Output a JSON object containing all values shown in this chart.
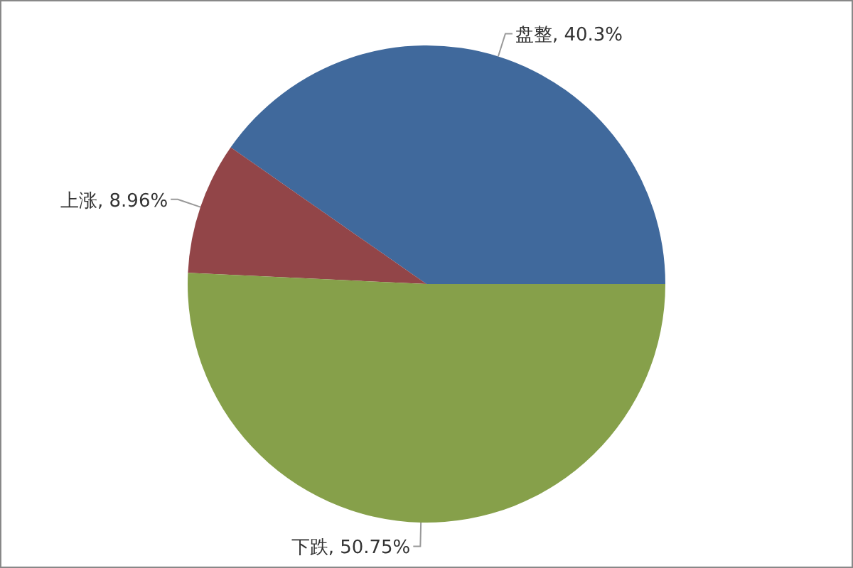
{
  "chart_data": {
    "type": "pie",
    "categories": [
      "盘整",
      "上涨",
      "下跌"
    ],
    "values": [
      40.3,
      8.96,
      50.75
    ],
    "colors": [
      "#40699c",
      "#924548",
      "#86a04a"
    ],
    "value_labels": [
      "40.3%",
      "8.96%",
      "50.75%"
    ]
  }
}
